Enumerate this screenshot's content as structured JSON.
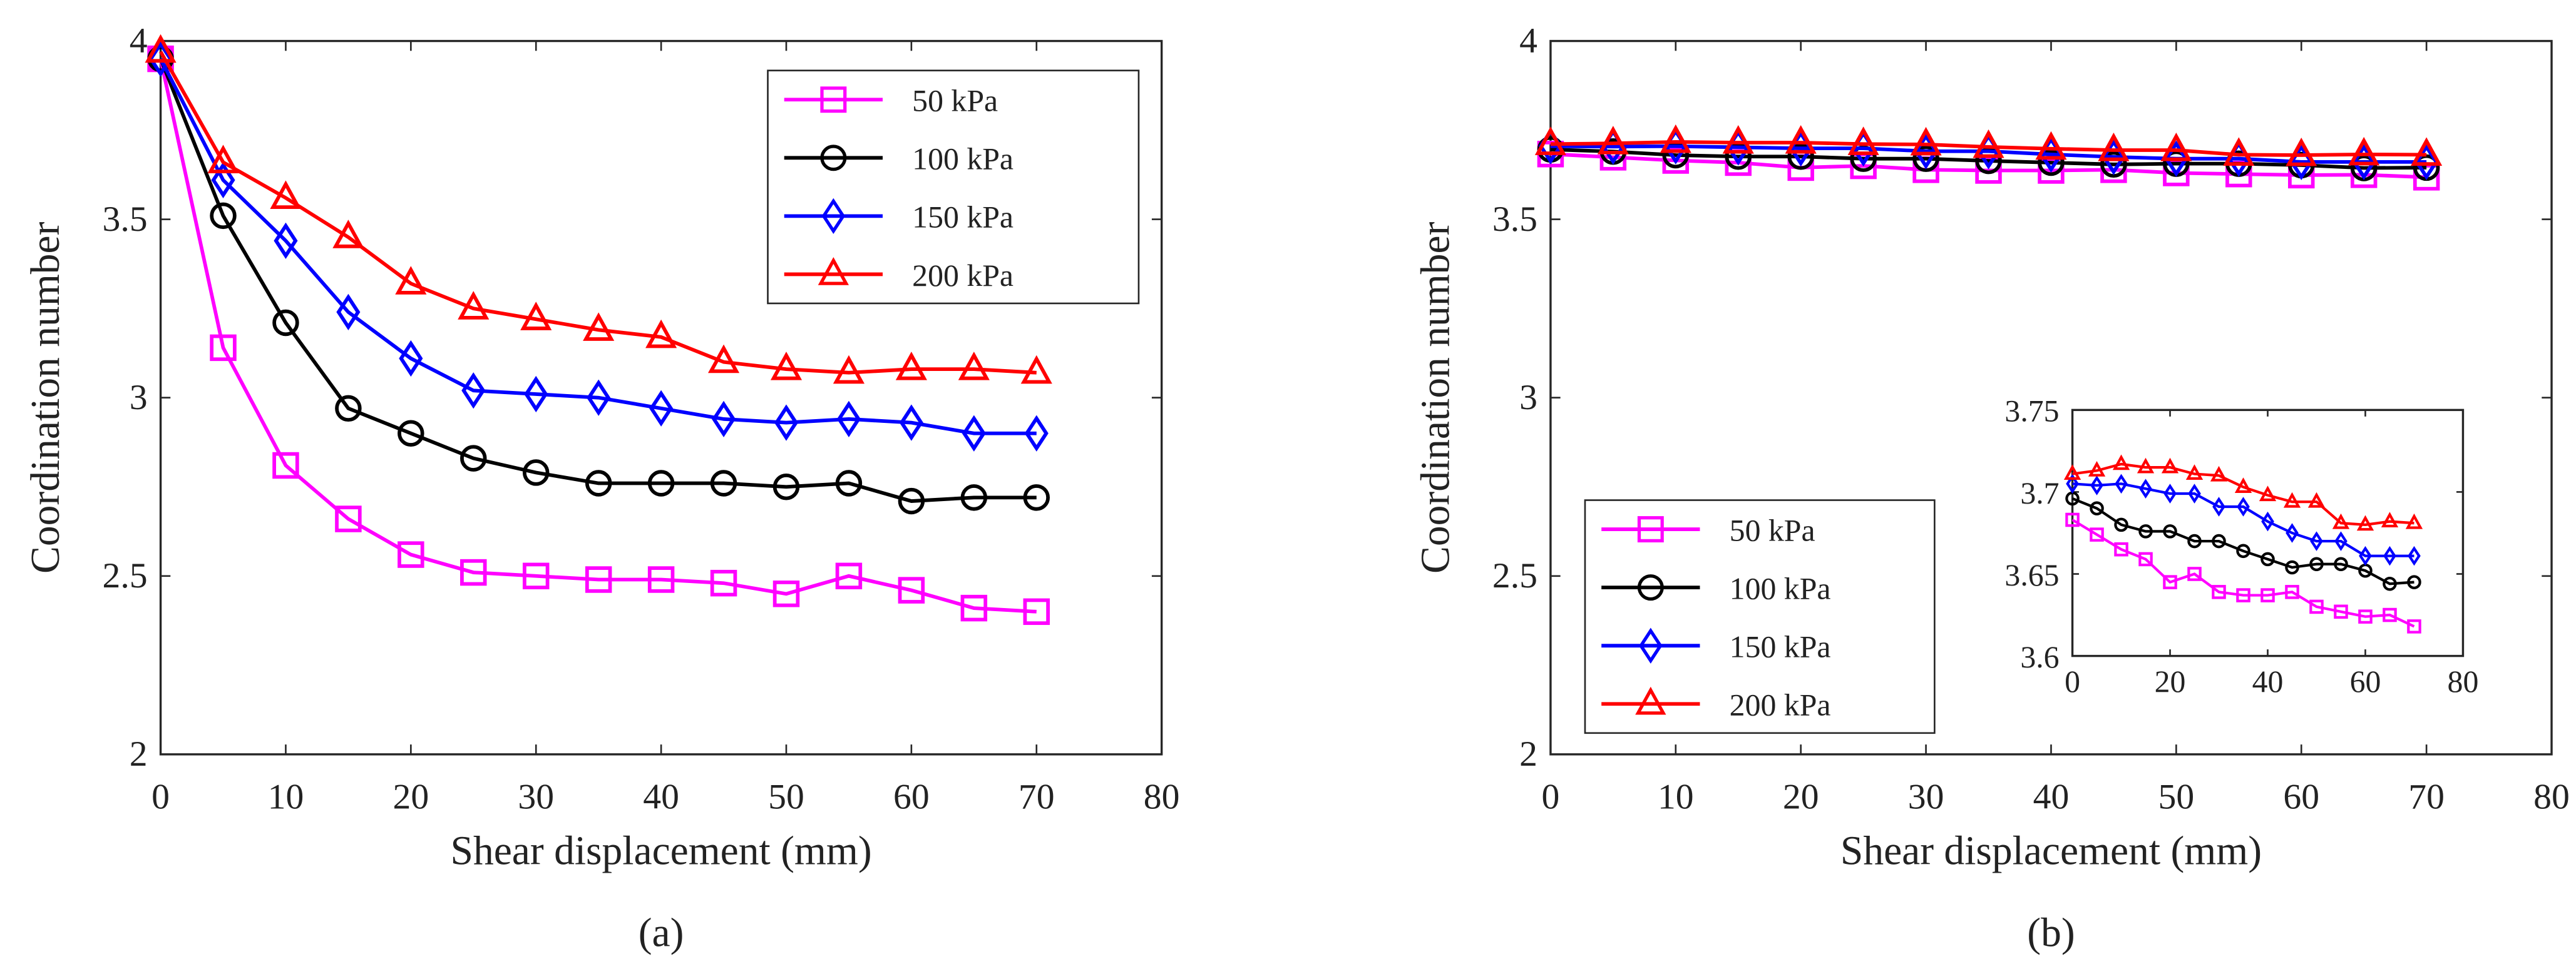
{
  "chart_data": [
    {
      "type": "line",
      "panel_label": "(a)",
      "xlabel": "Shear displacement (mm)",
      "ylabel": "Coordination number",
      "xlim": [
        0,
        80
      ],
      "ylim": [
        2,
        4
      ],
      "xticks": [
        "0",
        "10",
        "20",
        "30",
        "40",
        "50",
        "60",
        "70",
        "80"
      ],
      "yticks": [
        "2",
        "2.5",
        "3",
        "3.5",
        "4"
      ],
      "grid": false,
      "legend_position": "top-right",
      "x": [
        0,
        5,
        10,
        15,
        20,
        25,
        30,
        35,
        40,
        45,
        50,
        55,
        60,
        65,
        70
      ],
      "series": [
        {
          "name": "50 kPa",
          "color": "#ff00ff",
          "marker": "square",
          "values": [
            3.95,
            3.14,
            2.81,
            2.66,
            2.56,
            2.51,
            2.5,
            2.49,
            2.49,
            2.48,
            2.45,
            2.5,
            2.46,
            2.41,
            2.4
          ]
        },
        {
          "name": "100 kPa",
          "color": "#000000",
          "marker": "circle",
          "values": [
            3.95,
            3.51,
            3.21,
            2.97,
            2.9,
            2.83,
            2.79,
            2.76,
            2.76,
            2.76,
            2.75,
            2.76,
            2.71,
            2.72,
            2.72
          ]
        },
        {
          "name": "150 kPa",
          "color": "#0000ff",
          "marker": "diamond",
          "values": [
            3.95,
            3.61,
            3.44,
            3.24,
            3.11,
            3.02,
            3.01,
            3.0,
            2.97,
            2.94,
            2.93,
            2.94,
            2.93,
            2.9,
            2.9
          ]
        },
        {
          "name": "200 kPa",
          "color": "#ff0000",
          "marker": "triangle",
          "values": [
            3.97,
            3.66,
            3.56,
            3.45,
            3.32,
            3.25,
            3.22,
            3.19,
            3.17,
            3.1,
            3.08,
            3.07,
            3.08,
            3.08,
            3.07
          ]
        }
      ]
    },
    {
      "type": "line",
      "panel_label": "(b)",
      "xlabel": "Shear displacement (mm)",
      "ylabel": "Coordination number",
      "xlim": [
        0,
        80
      ],
      "ylim": [
        2,
        4
      ],
      "xticks": [
        "0",
        "10",
        "20",
        "30",
        "40",
        "50",
        "60",
        "70",
        "80"
      ],
      "yticks": [
        "2",
        "2.5",
        "3",
        "3.5",
        "4"
      ],
      "grid": false,
      "legend_position": "bottom-left",
      "x": [
        0,
        5,
        10,
        15,
        20,
        25,
        30,
        35,
        40,
        45,
        50,
        55,
        60,
        65,
        70
      ],
      "series": [
        {
          "name": "50 kPa",
          "color": "#ff00ff",
          "marker": "square",
          "values": [
            3.683,
            3.674,
            3.665,
            3.659,
            3.645,
            3.65,
            3.639,
            3.637,
            3.637,
            3.639,
            3.63,
            3.627,
            3.624,
            3.625,
            3.618
          ]
        },
        {
          "name": "100 kPa",
          "color": "#000000",
          "marker": "circle",
          "values": [
            3.696,
            3.69,
            3.68,
            3.676,
            3.676,
            3.67,
            3.67,
            3.664,
            3.659,
            3.654,
            3.656,
            3.656,
            3.652,
            3.644,
            3.645
          ]
        },
        {
          "name": "150 kPa",
          "color": "#0000ff",
          "marker": "diamond",
          "values": [
            3.705,
            3.704,
            3.705,
            3.702,
            3.699,
            3.699,
            3.691,
            3.691,
            3.682,
            3.675,
            3.67,
            3.67,
            3.661,
            3.661,
            3.661
          ]
        },
        {
          "name": "200 kPa",
          "color": "#ff0000",
          "marker": "triangle",
          "values": [
            3.711,
            3.713,
            3.717,
            3.715,
            3.715,
            3.711,
            3.71,
            3.703,
            3.698,
            3.694,
            3.694,
            3.681,
            3.68,
            3.682,
            3.681
          ]
        }
      ],
      "inset": {
        "xlim": [
          0,
          80
        ],
        "ylim": [
          3.6,
          3.75
        ],
        "xticks": [
          "0",
          "20",
          "40",
          "60",
          "80"
        ],
        "yticks": [
          "3.6",
          "3.65",
          "3.7",
          "3.75"
        ]
      }
    }
  ]
}
